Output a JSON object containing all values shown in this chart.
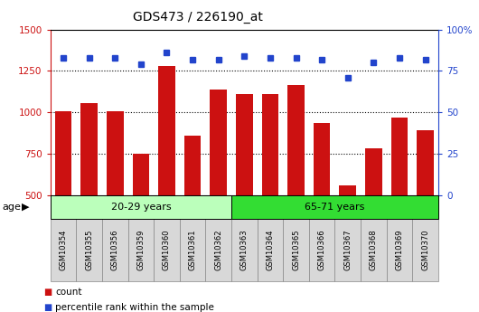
{
  "title": "GDS473 / 226190_at",
  "samples": [
    "GSM10354",
    "GSM10355",
    "GSM10356",
    "GSM10359",
    "GSM10360",
    "GSM10361",
    "GSM10362",
    "GSM10363",
    "GSM10364",
    "GSM10365",
    "GSM10366",
    "GSM10367",
    "GSM10368",
    "GSM10369",
    "GSM10370"
  ],
  "counts": [
    1005,
    1055,
    1005,
    750,
    1280,
    860,
    1140,
    1110,
    1110,
    1165,
    935,
    560,
    780,
    970,
    890
  ],
  "percentile_ranks": [
    83,
    83,
    83,
    79,
    86,
    82,
    82,
    84,
    83,
    83,
    82,
    71,
    80,
    83,
    82
  ],
  "group1_label": "20-29 years",
  "group1_count": 7,
  "group2_label": "65-71 years",
  "group2_count": 8,
  "age_label": "age",
  "ylim_left": [
    500,
    1500
  ],
  "ylim_right": [
    0,
    100
  ],
  "yticks_left": [
    500,
    750,
    1000,
    1250,
    1500
  ],
  "yticks_right": [
    0,
    25,
    50,
    75,
    100
  ],
  "bar_color": "#cc1111",
  "dot_color": "#2244cc",
  "group1_bg": "#bbffbb",
  "group2_bg": "#33dd33",
  "xlabel_bg": "#d8d8d8",
  "legend_count_label": "count",
  "legend_pct_label": "percentile rank within the sample",
  "title_fontsize": 10,
  "axis_left_color": "#cc1111",
  "axis_right_color": "#2244cc",
  "grid_yticks": [
    750,
    1000,
    1250
  ]
}
